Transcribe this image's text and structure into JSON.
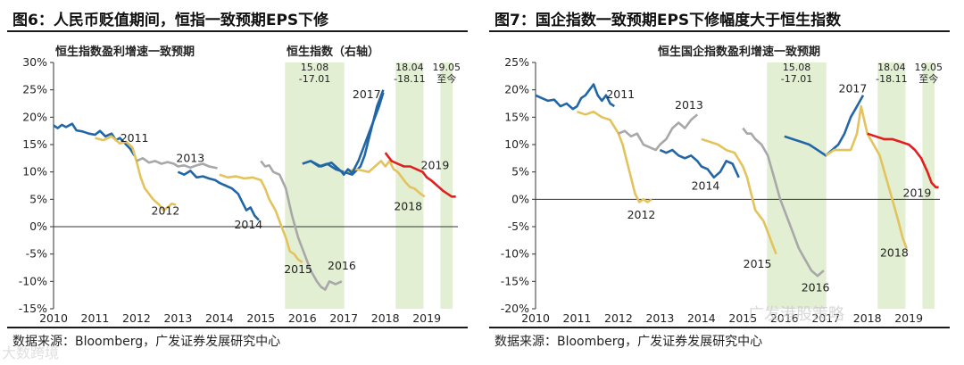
{
  "watermarks": {
    "left": "大数跨境",
    "right": "广发港股策略"
  },
  "chart_data": [
    {
      "type": "line",
      "fig_title": "图6：人民币贬值期间，恒指一致预期EPS下修",
      "subtitle_left": "恒生指数盈利增速一致预期",
      "subtitle_right": "恒生指数（右轴）",
      "source": "数据来源：Bloomberg，广发证券发展研究中心",
      "ylim": [
        -0.15,
        0.3
      ],
      "yticks": [
        -0.15,
        -0.1,
        -0.05,
        0.0,
        0.05,
        0.1,
        0.15,
        0.2,
        0.25,
        0.3
      ],
      "ytick_labels": [
        "-15%",
        "-10%",
        "-5%",
        "0%",
        "5%",
        "10%",
        "15%",
        "20%",
        "25%",
        "30%"
      ],
      "xlim": [
        2010,
        2019.75
      ],
      "xticks": [
        2010,
        2011,
        2012,
        2013,
        2014,
        2015,
        2016,
        2017,
        2018,
        2019
      ],
      "xtick_labels": [
        "2010",
        "2011",
        "2012",
        "2013",
        "2014",
        "2015",
        "2016",
        "2017",
        "2018",
        "2019"
      ],
      "shaded": [
        {
          "x0": 2015.58,
          "x1": 2017.01,
          "label": [
            "15.08",
            "-17.01"
          ]
        },
        {
          "x0": 2018.25,
          "x1": 2018.92,
          "label": [
            "18.04",
            "-18.11"
          ]
        },
        {
          "x0": 2019.33,
          "x1": 2019.62,
          "label": [
            "19.05",
            "至今"
          ]
        }
      ],
      "series": [
        {
          "name": "2011",
          "color": "#2166a6",
          "x": [
            2010.0,
            2010.1,
            2010.2,
            2010.3,
            2010.45,
            2010.55,
            2010.7,
            2010.85,
            2011.0,
            2011.12,
            2011.25,
            2011.4,
            2011.5,
            2011.6,
            2011.75,
            2011.85,
            2011.95
          ],
          "y": [
            0.185,
            0.18,
            0.186,
            0.182,
            0.188,
            0.176,
            0.174,
            0.17,
            0.168,
            0.175,
            0.165,
            0.17,
            0.158,
            0.162,
            0.15,
            0.142,
            0.13
          ]
        },
        {
          "name": "2012",
          "color": "#e3c35c",
          "x": [
            2011.0,
            2011.2,
            2011.4,
            2011.6,
            2011.75,
            2011.9,
            2012.0,
            2012.1,
            2012.2,
            2012.3,
            2012.4,
            2012.55,
            2012.65,
            2012.75,
            2012.85,
            2012.95
          ],
          "y": [
            0.162,
            0.158,
            0.165,
            0.152,
            0.155,
            0.145,
            0.12,
            0.09,
            0.07,
            0.06,
            0.05,
            0.04,
            0.03,
            0.035,
            0.042,
            0.04
          ]
        },
        {
          "name": "2013",
          "color": "#a8a8a8",
          "x": [
            2012.0,
            2012.15,
            2012.3,
            2012.45,
            2012.6,
            2012.75,
            2012.9,
            2013.0,
            2013.15,
            2013.3,
            2013.45,
            2013.6,
            2013.75,
            2013.95
          ],
          "y": [
            0.12,
            0.125,
            0.117,
            0.12,
            0.115,
            0.118,
            0.115,
            0.11,
            0.112,
            0.108,
            0.112,
            0.115,
            0.11,
            0.107
          ]
        },
        {
          "name": "2014",
          "color": "#2166a6",
          "x": [
            2013.0,
            2013.15,
            2013.3,
            2013.45,
            2013.6,
            2013.75,
            2013.9,
            2014.0,
            2014.15,
            2014.3,
            2014.45,
            2014.55,
            2014.65,
            2014.75,
            2014.85,
            2014.95
          ],
          "y": [
            0.1,
            0.095,
            0.102,
            0.09,
            0.092,
            0.088,
            0.085,
            0.08,
            0.075,
            0.07,
            0.06,
            0.045,
            0.03,
            0.035,
            0.02,
            0.012
          ]
        },
        {
          "name": "2015",
          "color": "#e3c35c",
          "x": [
            2014.0,
            2014.2,
            2014.4,
            2014.6,
            2014.8,
            2015.0,
            2015.1,
            2015.2,
            2015.35,
            2015.5,
            2015.6,
            2015.7,
            2015.8,
            2015.9,
            2016.0
          ],
          "y": [
            0.095,
            0.09,
            0.092,
            0.088,
            0.09,
            0.085,
            0.07,
            0.05,
            0.03,
            0.0,
            -0.02,
            -0.045,
            -0.05,
            -0.06,
            -0.065
          ]
        },
        {
          "name": "2016",
          "color": "#a8a8a8",
          "x": [
            2015.0,
            2015.1,
            2015.2,
            2015.3,
            2015.45,
            2015.6,
            2015.75,
            2015.9,
            2016.05,
            2016.2,
            2016.35,
            2016.45,
            2016.55,
            2016.65,
            2016.8,
            2016.95
          ],
          "y": [
            0.12,
            0.11,
            0.112,
            0.1,
            0.095,
            0.07,
            0.02,
            -0.02,
            -0.05,
            -0.08,
            -0.1,
            -0.11,
            -0.115,
            -0.1,
            -0.105,
            -0.1
          ]
        },
        {
          "name": "2017",
          "color": "#2166a6",
          "x": [
            2016.0,
            2016.2,
            2016.4,
            2016.6,
            2016.8,
            2017.0,
            2017.2,
            2017.4,
            2017.5,
            2017.6,
            2017.7,
            2017.8,
            2017.95
          ],
          "y": [
            0.115,
            0.12,
            0.11,
            0.115,
            0.105,
            0.1,
            0.095,
            0.11,
            0.13,
            0.16,
            0.19,
            0.22,
            0.25
          ]
        },
        {
          "name": "2018",
          "color": "#e3c35c",
          "x": [
            2017.0,
            2017.3,
            2017.6,
            2017.9,
            2018.0,
            2018.1,
            2018.2,
            2018.3,
            2018.4,
            2018.5,
            2018.6,
            2018.7,
            2018.85,
            2018.95
          ],
          "y": [
            0.1,
            0.105,
            0.1,
            0.12,
            0.11,
            0.12,
            0.105,
            0.1,
            0.09,
            0.08,
            0.072,
            0.07,
            0.06,
            0.055
          ]
        },
        {
          "name": "2019",
          "color": "#e02020",
          "x": [
            2018.0,
            2018.15,
            2018.3,
            2018.45,
            2018.6,
            2018.75,
            2018.9,
            2019.0,
            2019.1,
            2019.25,
            2019.4,
            2019.5,
            2019.6,
            2019.7
          ],
          "y": [
            0.135,
            0.12,
            0.115,
            0.11,
            0.11,
            0.105,
            0.1,
            0.09,
            0.085,
            0.075,
            0.065,
            0.06,
            0.055,
            0.055
          ]
        }
      ],
      "hsi": {
        "name": "恒生指数（右轴）",
        "color": "#2166a6",
        "x": [
          2016.2,
          2016.45,
          2016.7,
          2016.95,
          2017.0,
          2017.1,
          2017.2,
          2017.35,
          2017.5,
          2017.65,
          2017.75,
          2017.85,
          2017.95
        ],
        "y": [
          0.12,
          0.11,
          0.117,
          0.1,
          0.095,
          0.105,
          0.098,
          0.12,
          0.15,
          0.18,
          0.2,
          0.22,
          0.245
        ]
      },
      "series_labels": [
        {
          "text": "2011",
          "x": 2011.95,
          "y": 0.155
        },
        {
          "text": "2012",
          "x": 2012.7,
          "y": 0.022
        },
        {
          "text": "2013",
          "x": 2013.3,
          "y": 0.118
        },
        {
          "text": "2014",
          "x": 2014.7,
          "y": -0.003
        },
        {
          "text": "2015",
          "x": 2015.9,
          "y": -0.085
        },
        {
          "text": "2016",
          "x": 2016.95,
          "y": -0.078
        },
        {
          "text": "2017",
          "x": 2017.55,
          "y": 0.235
        },
        {
          "text": "2018",
          "x": 2018.55,
          "y": 0.03
        },
        {
          "text": "2019",
          "x": 2019.2,
          "y": 0.105
        }
      ]
    },
    {
      "type": "line",
      "fig_title": "图7：国企指数一致预期EPS下修幅度大于恒生指数",
      "subtitle_left": "恒生国企指数盈利增速一致预期",
      "source": "数据来源：Bloomberg，广发证券发展研究中心",
      "ylim": [
        -0.2,
        0.25
      ],
      "yticks": [
        -0.2,
        -0.15,
        -0.1,
        -0.05,
        0.0,
        0.05,
        0.1,
        0.15,
        0.2,
        0.25
      ],
      "ytick_labels": [
        "-20%",
        "-15%",
        "-10%",
        "-5%",
        "0%",
        "5%",
        "10%",
        "15%",
        "20%",
        "25%"
      ],
      "xlim": [
        2010,
        2019.75
      ],
      "xticks": [
        2010,
        2011,
        2012,
        2013,
        2014,
        2015,
        2016,
        2017,
        2018,
        2019
      ],
      "xtick_labels": [
        "2010",
        "2011",
        "2012",
        "2013",
        "2014",
        "2015",
        "2016",
        "2017",
        "2018",
        "2019"
      ],
      "shaded": [
        {
          "x0": 2015.58,
          "x1": 2017.01,
          "label": [
            "15.08",
            "-17.01"
          ]
        },
        {
          "x0": 2018.25,
          "x1": 2018.92,
          "label": [
            "18.04",
            "-18.11"
          ]
        },
        {
          "x0": 2019.33,
          "x1": 2019.62,
          "label": [
            "19.05",
            "至今"
          ]
        }
      ],
      "series": [
        {
          "name": "2011",
          "color": "#2166a6",
          "x": [
            2010.0,
            2010.15,
            2010.3,
            2010.45,
            2010.6,
            2010.75,
            2010.9,
            2011.0,
            2011.1,
            2011.2,
            2011.3,
            2011.4,
            2011.5,
            2011.6,
            2011.7,
            2011.8,
            2011.9
          ],
          "y": [
            0.19,
            0.185,
            0.18,
            0.182,
            0.17,
            0.175,
            0.165,
            0.17,
            0.185,
            0.19,
            0.2,
            0.21,
            0.19,
            0.18,
            0.19,
            0.175,
            0.17
          ]
        },
        {
          "name": "2012",
          "color": "#e3c35c",
          "x": [
            2011.0,
            2011.2,
            2011.4,
            2011.6,
            2011.8,
            2012.0,
            2012.1,
            2012.2,
            2012.3,
            2012.4,
            2012.5,
            2012.6,
            2012.7,
            2012.8
          ],
          "y": [
            0.16,
            0.155,
            0.16,
            0.15,
            0.145,
            0.12,
            0.1,
            0.07,
            0.04,
            0.01,
            -0.005,
            0.0,
            -0.005,
            0.0
          ]
        },
        {
          "name": "2013",
          "color": "#a8a8a8",
          "x": [
            2012.0,
            2012.15,
            2012.3,
            2012.45,
            2012.6,
            2012.75,
            2012.9,
            2013.0,
            2013.15,
            2013.3,
            2013.45,
            2013.6,
            2013.75,
            2013.9
          ],
          "y": [
            0.12,
            0.125,
            0.115,
            0.12,
            0.1,
            0.095,
            0.09,
            0.1,
            0.11,
            0.13,
            0.14,
            0.13,
            0.145,
            0.155
          ]
        },
        {
          "name": "2014",
          "color": "#2166a6",
          "x": [
            2013.0,
            2013.15,
            2013.3,
            2013.45,
            2013.6,
            2013.75,
            2013.9,
            2014.0,
            2014.15,
            2014.3,
            2014.45,
            2014.6,
            2014.75,
            2014.9
          ],
          "y": [
            0.09,
            0.085,
            0.09,
            0.08,
            0.075,
            0.08,
            0.07,
            0.06,
            0.055,
            0.04,
            0.05,
            0.07,
            0.065,
            0.04
          ]
        },
        {
          "name": "2015",
          "color": "#e3c35c",
          "x": [
            2014.0,
            2014.2,
            2014.4,
            2014.6,
            2014.8,
            2015.0,
            2015.1,
            2015.2,
            2015.3,
            2015.4,
            2015.5,
            2015.6,
            2015.7,
            2015.8
          ],
          "y": [
            0.11,
            0.105,
            0.1,
            0.09,
            0.085,
            0.06,
            0.04,
            0.01,
            -0.02,
            -0.03,
            -0.04,
            -0.06,
            -0.08,
            -0.1
          ]
        },
        {
          "name": "2016",
          "color": "#a8a8a8",
          "x": [
            2015.0,
            2015.1,
            2015.2,
            2015.3,
            2015.45,
            2015.6,
            2015.75,
            2015.9,
            2016.05,
            2016.2,
            2016.35,
            2016.5,
            2016.65,
            2016.8,
            2016.95
          ],
          "y": [
            0.13,
            0.12,
            0.12,
            0.11,
            0.1,
            0.08,
            0.04,
            0.0,
            -0.03,
            -0.06,
            -0.09,
            -0.11,
            -0.13,
            -0.14,
            -0.13
          ]
        },
        {
          "name": "2017",
          "color": "#2166a6",
          "x": [
            2016.0,
            2016.2,
            2016.4,
            2016.6,
            2016.8,
            2017.0,
            2017.15,
            2017.3,
            2017.45,
            2017.6,
            2017.75,
            2017.9
          ],
          "y": [
            0.115,
            0.11,
            0.105,
            0.1,
            0.09,
            0.08,
            0.09,
            0.1,
            0.12,
            0.15,
            0.17,
            0.19
          ]
        },
        {
          "name": "2018",
          "color": "#e3c35c",
          "x": [
            2017.0,
            2017.2,
            2017.4,
            2017.6,
            2017.75,
            2017.85,
            2018.0,
            2018.15,
            2018.3,
            2018.45,
            2018.6,
            2018.75,
            2018.85,
            2018.95
          ],
          "y": [
            0.08,
            0.09,
            0.09,
            0.09,
            0.12,
            0.17,
            0.12,
            0.1,
            0.08,
            0.04,
            0.0,
            -0.04,
            -0.07,
            -0.09
          ]
        },
        {
          "name": "2019",
          "color": "#e02020",
          "x": [
            2018.0,
            2018.2,
            2018.4,
            2018.6,
            2018.8,
            2019.0,
            2019.15,
            2019.3,
            2019.45,
            2019.55,
            2019.65,
            2019.72
          ],
          "y": [
            0.12,
            0.115,
            0.11,
            0.11,
            0.105,
            0.1,
            0.09,
            0.075,
            0.05,
            0.03,
            0.022,
            0.022
          ]
        }
      ],
      "series_labels": [
        {
          "text": "2011",
          "x": 2012.05,
          "y": 0.185
        },
        {
          "text": "2012",
          "x": 2012.55,
          "y": -0.035
        },
        {
          "text": "2013",
          "x": 2013.7,
          "y": 0.165
        },
        {
          "text": "2014",
          "x": 2014.1,
          "y": 0.018
        },
        {
          "text": "2015",
          "x": 2015.35,
          "y": -0.125
        },
        {
          "text": "2016",
          "x": 2016.75,
          "y": -0.168
        },
        {
          "text": "2017",
          "x": 2017.65,
          "y": 0.195
        },
        {
          "text": "2018",
          "x": 2018.65,
          "y": -0.105
        },
        {
          "text": "2019",
          "x": 2019.2,
          "y": 0.005
        }
      ]
    }
  ]
}
